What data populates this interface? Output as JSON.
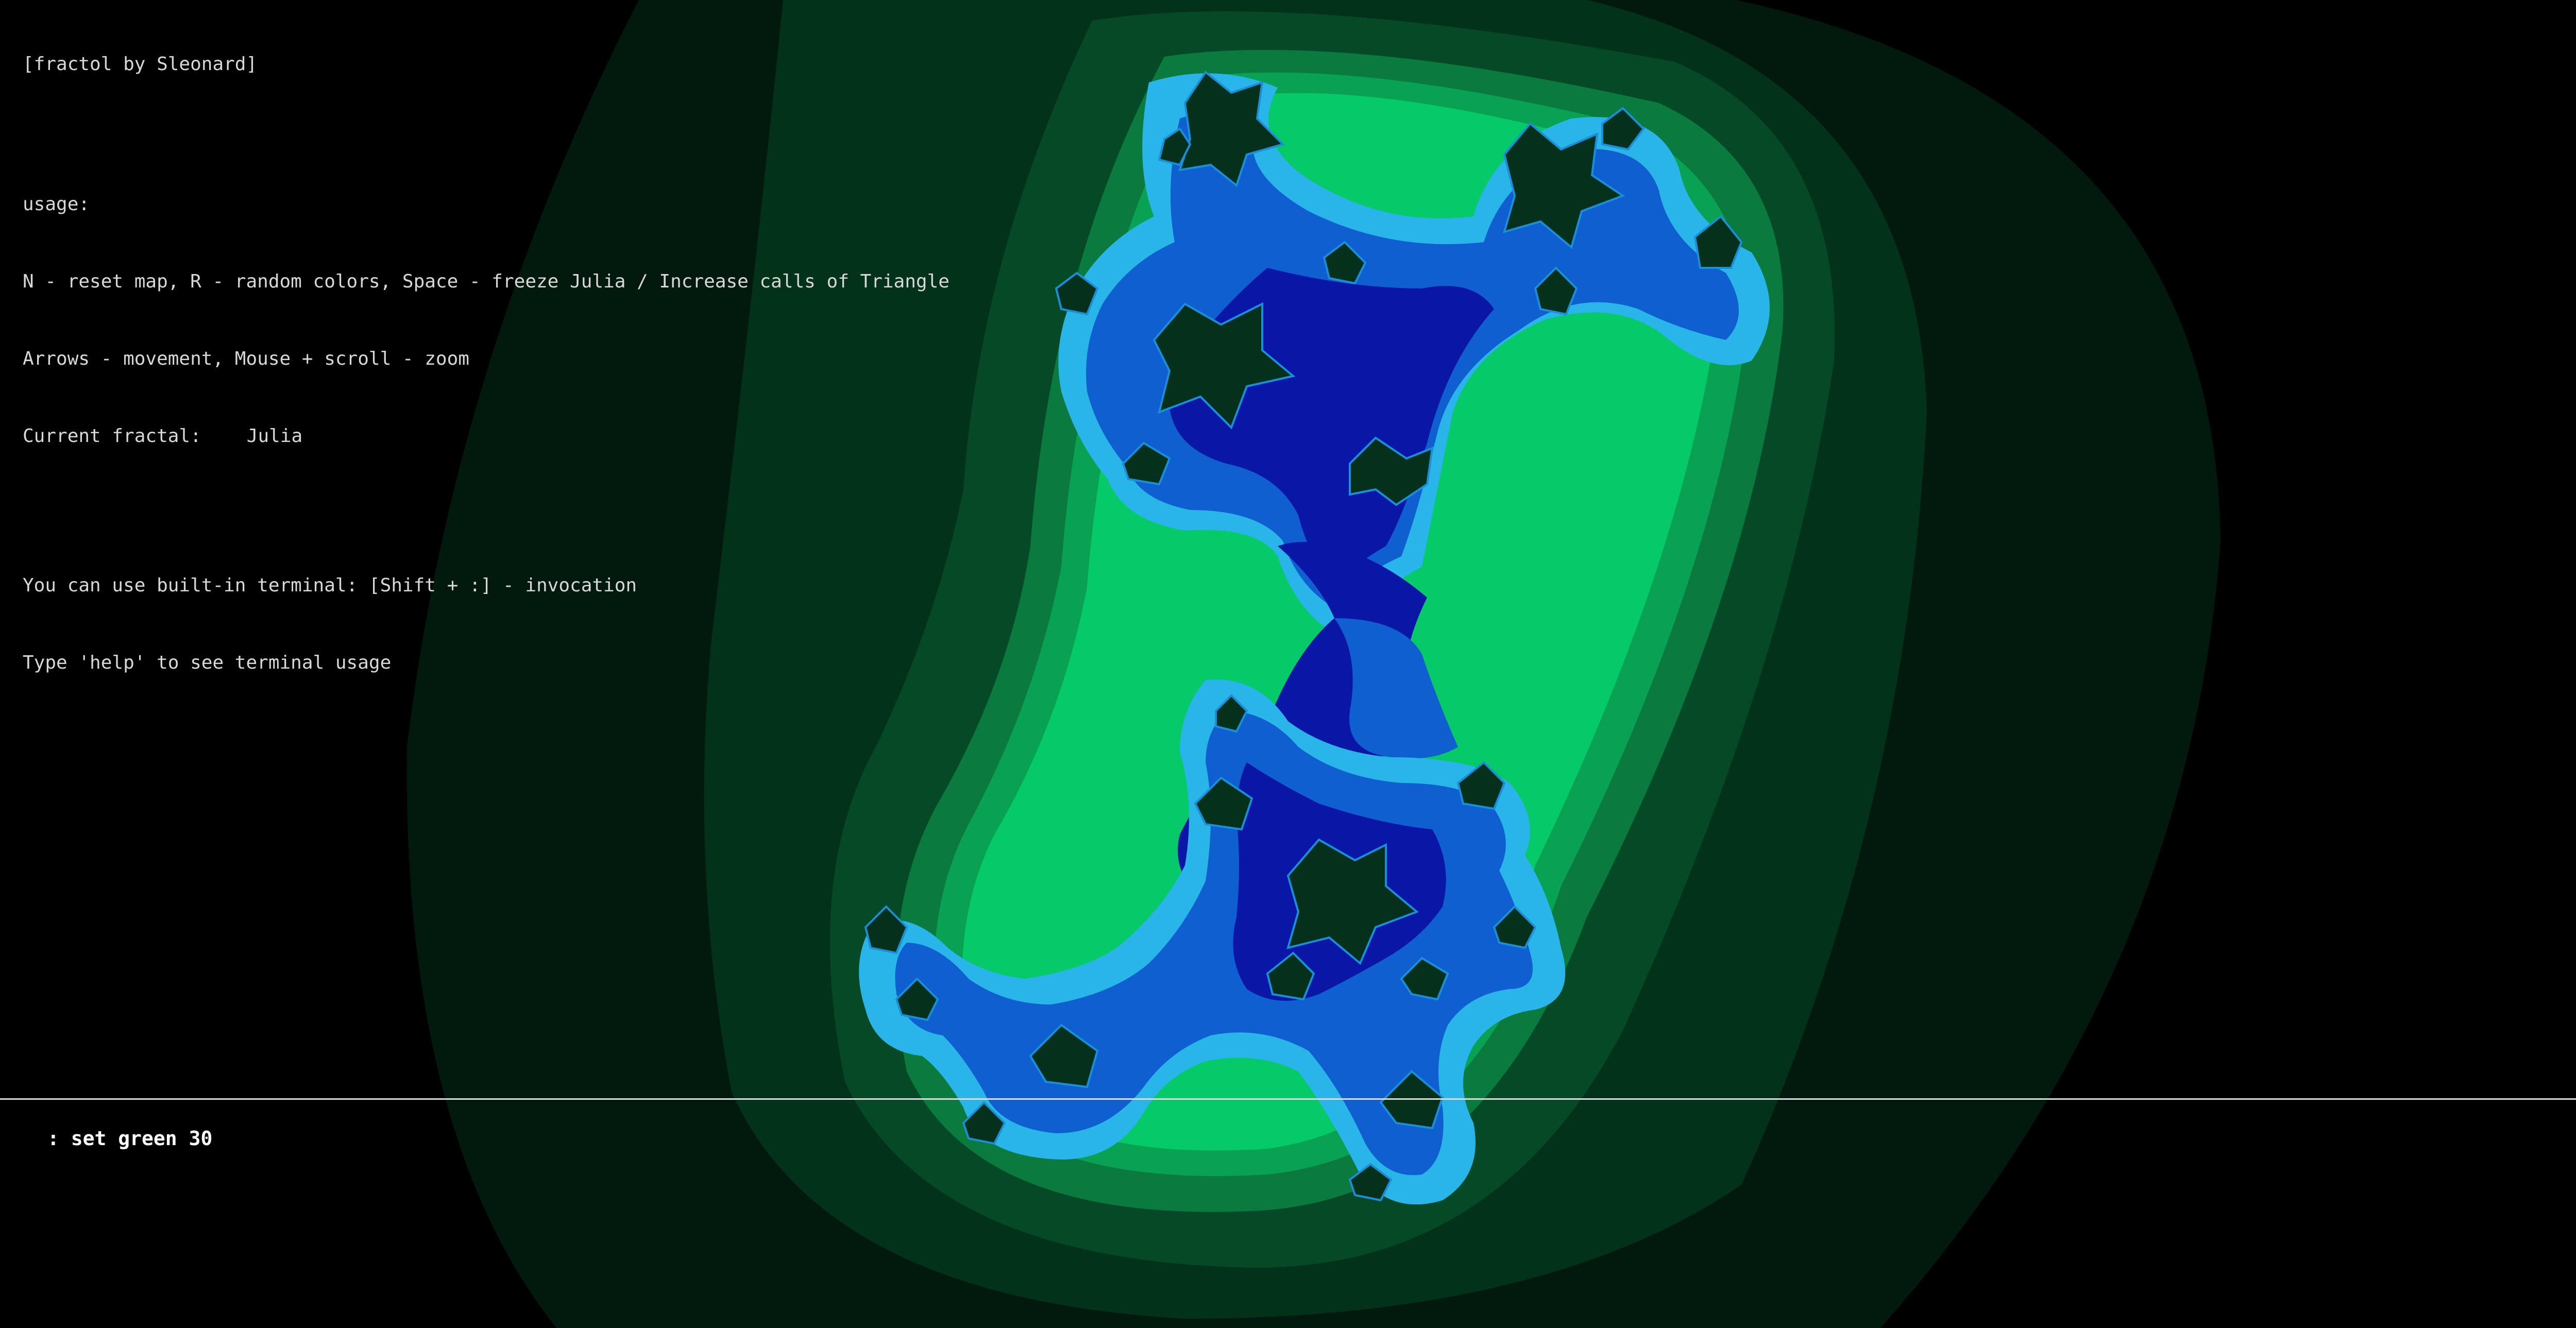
{
  "app": {
    "title": "[fractol by Sleonard]"
  },
  "help": {
    "usage_heading": "usage:",
    "line_keys": "N - reset map, R - random colors, Space - freeze Julia / Increase calls of Triangle",
    "line_nav": "Arrows - movement, Mouse + scroll - zoom",
    "current_label": "Current fractal:",
    "current_value": "Julia",
    "terminal_hint": "You can use built-in terminal: [Shift + :] - invocation",
    "terminal_help": "Type 'help' to see terminal usage"
  },
  "terminal": {
    "prompt": ":",
    "command": "set green 30"
  },
  "palette": {
    "background": "#000000",
    "outer_dark_green": "#03321a",
    "mid_green": "#0b7a3f",
    "bright_green": "#06c96a",
    "light_blue": "#29b5e8",
    "mid_blue": "#0f5fd0",
    "deep_blue": "#0a17a6",
    "rule_color": "#d9d9d9"
  }
}
